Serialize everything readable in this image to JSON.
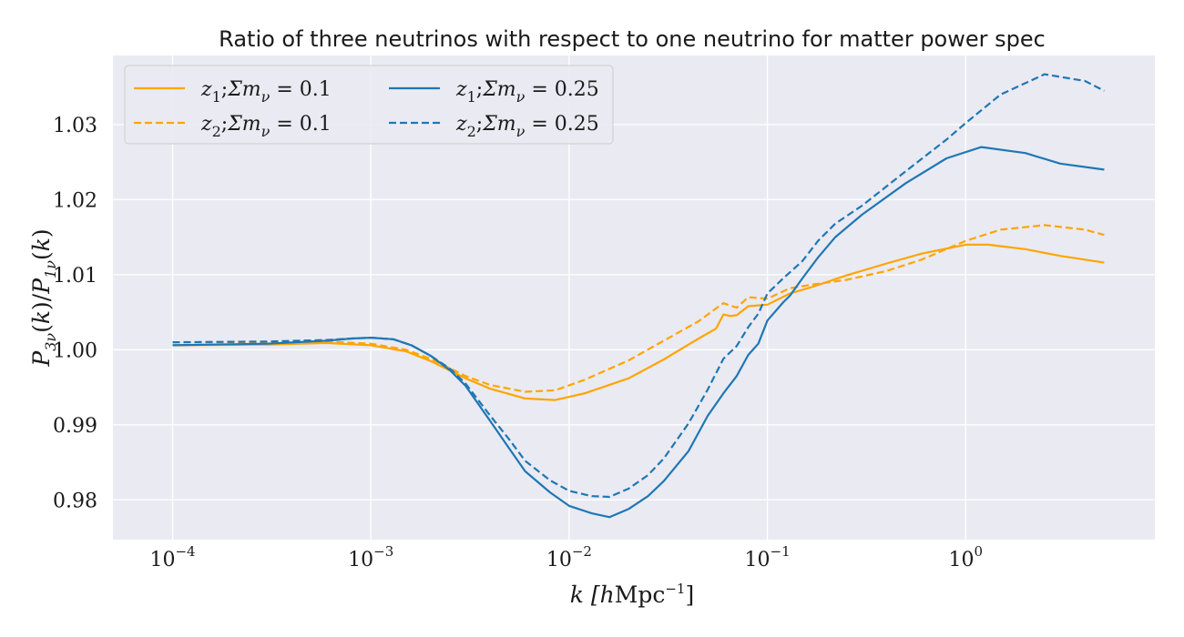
{
  "chart_data": {
    "type": "line",
    "title": "Ratio of three neutrinos with respect to one neutrino for matter power spec",
    "xlabel": "k [hMpc⁻¹]",
    "ylabel": "P₃ᵥ(k)/P₁ᵥ(k)",
    "xscale": "log",
    "xlim": [
      5e-05,
      9
    ],
    "ylim": [
      0.9747,
      1.0392
    ],
    "xticks": [
      {
        "value": 0.0001,
        "base": "10",
        "exp": "−4"
      },
      {
        "value": 0.001,
        "base": "10",
        "exp": "−3"
      },
      {
        "value": 0.01,
        "base": "10",
        "exp": "−2"
      },
      {
        "value": 0.1,
        "base": "10",
        "exp": "−1"
      },
      {
        "value": 1,
        "base": "10",
        "exp": "0"
      }
    ],
    "yticks": [
      {
        "value": 0.98,
        "label": "0.98"
      },
      {
        "value": 0.99,
        "label": "0.99"
      },
      {
        "value": 1.0,
        "label": "1.00"
      },
      {
        "value": 1.01,
        "label": "1.01"
      },
      {
        "value": 1.02,
        "label": "1.02"
      },
      {
        "value": 1.03,
        "label": "1.03"
      }
    ],
    "grid": true,
    "legend_position": "top-left",
    "background_color": "#eaeaf2",
    "series": [
      {
        "name": "z₁; Σmᵥ = 0.1",
        "color": "#ffa500",
        "dash": "solid",
        "points": [
          [
            0.0001,
            1.0006
          ],
          [
            0.0003,
            1.0007
          ],
          [
            0.0006,
            1.0009
          ],
          [
            0.001,
            1.0006
          ],
          [
            0.0015,
            0.9998
          ],
          [
            0.002,
            0.9985
          ],
          [
            0.003,
            0.9962
          ],
          [
            0.004,
            0.9948
          ],
          [
            0.006,
            0.9935
          ],
          [
            0.0085,
            0.9933
          ],
          [
            0.012,
            0.9942
          ],
          [
            0.02,
            0.9962
          ],
          [
            0.03,
            0.9987
          ],
          [
            0.045,
            1.0015
          ],
          [
            0.055,
            1.0028
          ],
          [
            0.06,
            1.0047
          ],
          [
            0.065,
            1.0045
          ],
          [
            0.07,
            1.0046
          ],
          [
            0.08,
            1.0058
          ],
          [
            0.1,
            1.006
          ],
          [
            0.13,
            1.0075
          ],
          [
            0.17,
            1.0084
          ],
          [
            0.25,
            1.0099
          ],
          [
            0.4,
            1.0115
          ],
          [
            0.6,
            1.0128
          ],
          [
            1.0,
            1.014
          ],
          [
            1.3,
            1.014
          ],
          [
            2.0,
            1.0134
          ],
          [
            3.0,
            1.0125
          ],
          [
            5.0,
            1.0116
          ]
        ]
      },
      {
        "name": "z₂; Σmᵥ = 0.1",
        "color": "#ffa500",
        "dash": "dashed",
        "points": [
          [
            0.0001,
            1.001
          ],
          [
            0.0003,
            1.001
          ],
          [
            0.0006,
            1.0011
          ],
          [
            0.001,
            1.0008
          ],
          [
            0.0015,
            1.0
          ],
          [
            0.002,
            0.9988
          ],
          [
            0.003,
            0.9965
          ],
          [
            0.004,
            0.9953
          ],
          [
            0.006,
            0.9944
          ],
          [
            0.0085,
            0.9946
          ],
          [
            0.012,
            0.996
          ],
          [
            0.02,
            0.9986
          ],
          [
            0.03,
            1.0012
          ],
          [
            0.045,
            1.0038
          ],
          [
            0.055,
            1.0055
          ],
          [
            0.06,
            1.0062
          ],
          [
            0.07,
            1.0056
          ],
          [
            0.08,
            1.007
          ],
          [
            0.1,
            1.0068
          ],
          [
            0.13,
            1.0082
          ],
          [
            0.17,
            1.0087
          ],
          [
            0.25,
            1.0093
          ],
          [
            0.4,
            1.0105
          ],
          [
            0.6,
            1.012
          ],
          [
            1.0,
            1.0145
          ],
          [
            1.5,
            1.016
          ],
          [
            2.5,
            1.0166
          ],
          [
            4.0,
            1.016
          ],
          [
            5.0,
            1.0153
          ]
        ]
      },
      {
        "name": "z₁; Σmᵥ = 0.25",
        "color": "#1f77b4",
        "dash": "solid",
        "points": [
          [
            0.0001,
            1.0006
          ],
          [
            0.0003,
            1.0008
          ],
          [
            0.0006,
            1.0012
          ],
          [
            0.0008,
            1.0015
          ],
          [
            0.001,
            1.0016
          ],
          [
            0.0013,
            1.0014
          ],
          [
            0.0016,
            1.0006
          ],
          [
            0.002,
            0.9992
          ],
          [
            0.0025,
            0.9973
          ],
          [
            0.003,
            0.9952
          ],
          [
            0.004,
            0.9905
          ],
          [
            0.005,
            0.9868
          ],
          [
            0.006,
            0.9838
          ],
          [
            0.008,
            0.981
          ],
          [
            0.01,
            0.9792
          ],
          [
            0.013,
            0.9782
          ],
          [
            0.016,
            0.9777
          ],
          [
            0.02,
            0.9788
          ],
          [
            0.025,
            0.9805
          ],
          [
            0.03,
            0.9825
          ],
          [
            0.04,
            0.9865
          ],
          [
            0.05,
            0.9912
          ],
          [
            0.06,
            0.9942
          ],
          [
            0.07,
            0.9965
          ],
          [
            0.08,
            0.9993
          ],
          [
            0.09,
            1.0008
          ],
          [
            0.1,
            1.0039
          ],
          [
            0.12,
            1.0063
          ],
          [
            0.13,
            1.0072
          ],
          [
            0.15,
            1.0095
          ],
          [
            0.18,
            1.0123
          ],
          [
            0.22,
            1.015
          ],
          [
            0.3,
            1.018
          ],
          [
            0.5,
            1.0222
          ],
          [
            0.8,
            1.0255
          ],
          [
            1.2,
            1.027
          ],
          [
            2.0,
            1.0262
          ],
          [
            3.0,
            1.0248
          ],
          [
            5.0,
            1.024
          ]
        ]
      },
      {
        "name": "z₂; Σmᵥ = 0.25",
        "color": "#1f77b4",
        "dash": "dashed",
        "points": [
          [
            0.0001,
            1.001
          ],
          [
            0.0003,
            1.0011
          ],
          [
            0.0006,
            1.0013
          ],
          [
            0.0008,
            1.0015
          ],
          [
            0.001,
            1.0016
          ],
          [
            0.0013,
            1.0014
          ],
          [
            0.0016,
            1.0006
          ],
          [
            0.002,
            0.9992
          ],
          [
            0.0025,
            0.9975
          ],
          [
            0.003,
            0.9955
          ],
          [
            0.004,
            0.9912
          ],
          [
            0.005,
            0.988
          ],
          [
            0.006,
            0.9852
          ],
          [
            0.008,
            0.9826
          ],
          [
            0.01,
            0.9812
          ],
          [
            0.013,
            0.9805
          ],
          [
            0.016,
            0.9804
          ],
          [
            0.02,
            0.9815
          ],
          [
            0.025,
            0.9833
          ],
          [
            0.03,
            0.9855
          ],
          [
            0.04,
            0.9902
          ],
          [
            0.05,
            0.9947
          ],
          [
            0.06,
            0.9988
          ],
          [
            0.07,
            1.0005
          ],
          [
            0.08,
            1.003
          ],
          [
            0.09,
            1.0048
          ],
          [
            0.1,
            1.0075
          ],
          [
            0.12,
            1.0095
          ],
          [
            0.15,
            1.0118
          ],
          [
            0.18,
            1.0145
          ],
          [
            0.22,
            1.0168
          ],
          [
            0.3,
            1.0192
          ],
          [
            0.5,
            1.0238
          ],
          [
            0.8,
            1.028
          ],
          [
            1.0,
            1.0302
          ],
          [
            1.5,
            1.034
          ],
          [
            2.5,
            1.0367
          ],
          [
            4.0,
            1.0358
          ],
          [
            5.0,
            1.0345
          ]
        ]
      }
    ]
  },
  "legend": [
    {
      "z": "z",
      "zsub": "1",
      "sum": "Σm",
      "nu": "ν",
      "value": "0.1"
    },
    {
      "z": "z",
      "zsub": "1",
      "sum": "Σm",
      "nu": "ν",
      "value": "0.25"
    },
    {
      "z": "z",
      "zsub": "2",
      "sum": "Σm",
      "nu": "ν",
      "value": "0.1"
    },
    {
      "z": "z",
      "zsub": "2",
      "sum": "Σm",
      "nu": "ν",
      "value": "0.25"
    }
  ]
}
